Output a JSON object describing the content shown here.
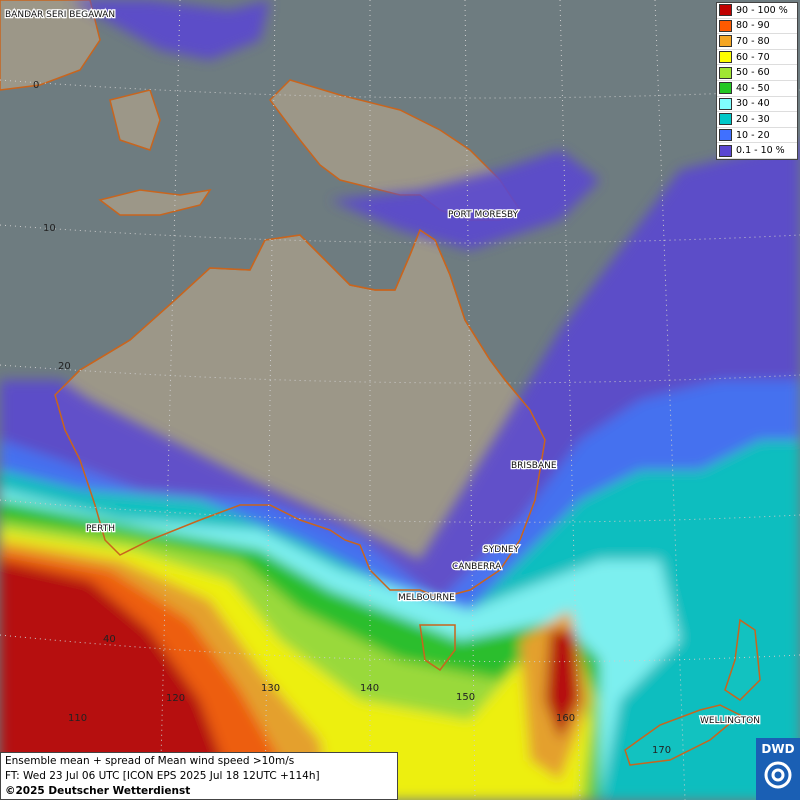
{
  "legend": {
    "items": [
      {
        "label": "90 - 100 %",
        "color": "#c00000"
      },
      {
        "label": "80 - 90",
        "color": "#ff5a00"
      },
      {
        "label": "70 - 80",
        "color": "#f5a623"
      },
      {
        "label": "60 - 70",
        "color": "#ffff00"
      },
      {
        "label": "50 - 60",
        "color": "#a0e632"
      },
      {
        "label": "40 - 50",
        "color": "#22c822"
      },
      {
        "label": "30 - 40",
        "color": "#7fffff"
      },
      {
        "label": "20 - 30",
        "color": "#00c8c8"
      },
      {
        "label": "10 - 20",
        "color": "#4070ff"
      },
      {
        "label": "0.1 - 10 %",
        "color": "#5a46d2"
      }
    ]
  },
  "cities": [
    "BANDAR SERI BEGAWAN",
    "PORT MORESBY",
    "BRISBANE",
    "PERTH",
    "SYDNEY",
    "CANBERRA",
    "MELBOURNE",
    "WELLINGTON"
  ],
  "grid_labels": {
    "lat": [
      "0",
      "10",
      "20",
      "40"
    ],
    "lon": [
      "110",
      "120",
      "130",
      "140",
      "150",
      "160",
      "170"
    ]
  },
  "footer": {
    "lines": [
      "Ensemble mean + spread of Mean wind speed >10m/s",
      "FT: Wed 23 Jul 06 UTC [ICON EPS 2025 Jul 18 12UTC +114h]",
      "©2025 Deutscher Wetterdienst"
    ]
  },
  "logo": "DWD"
}
